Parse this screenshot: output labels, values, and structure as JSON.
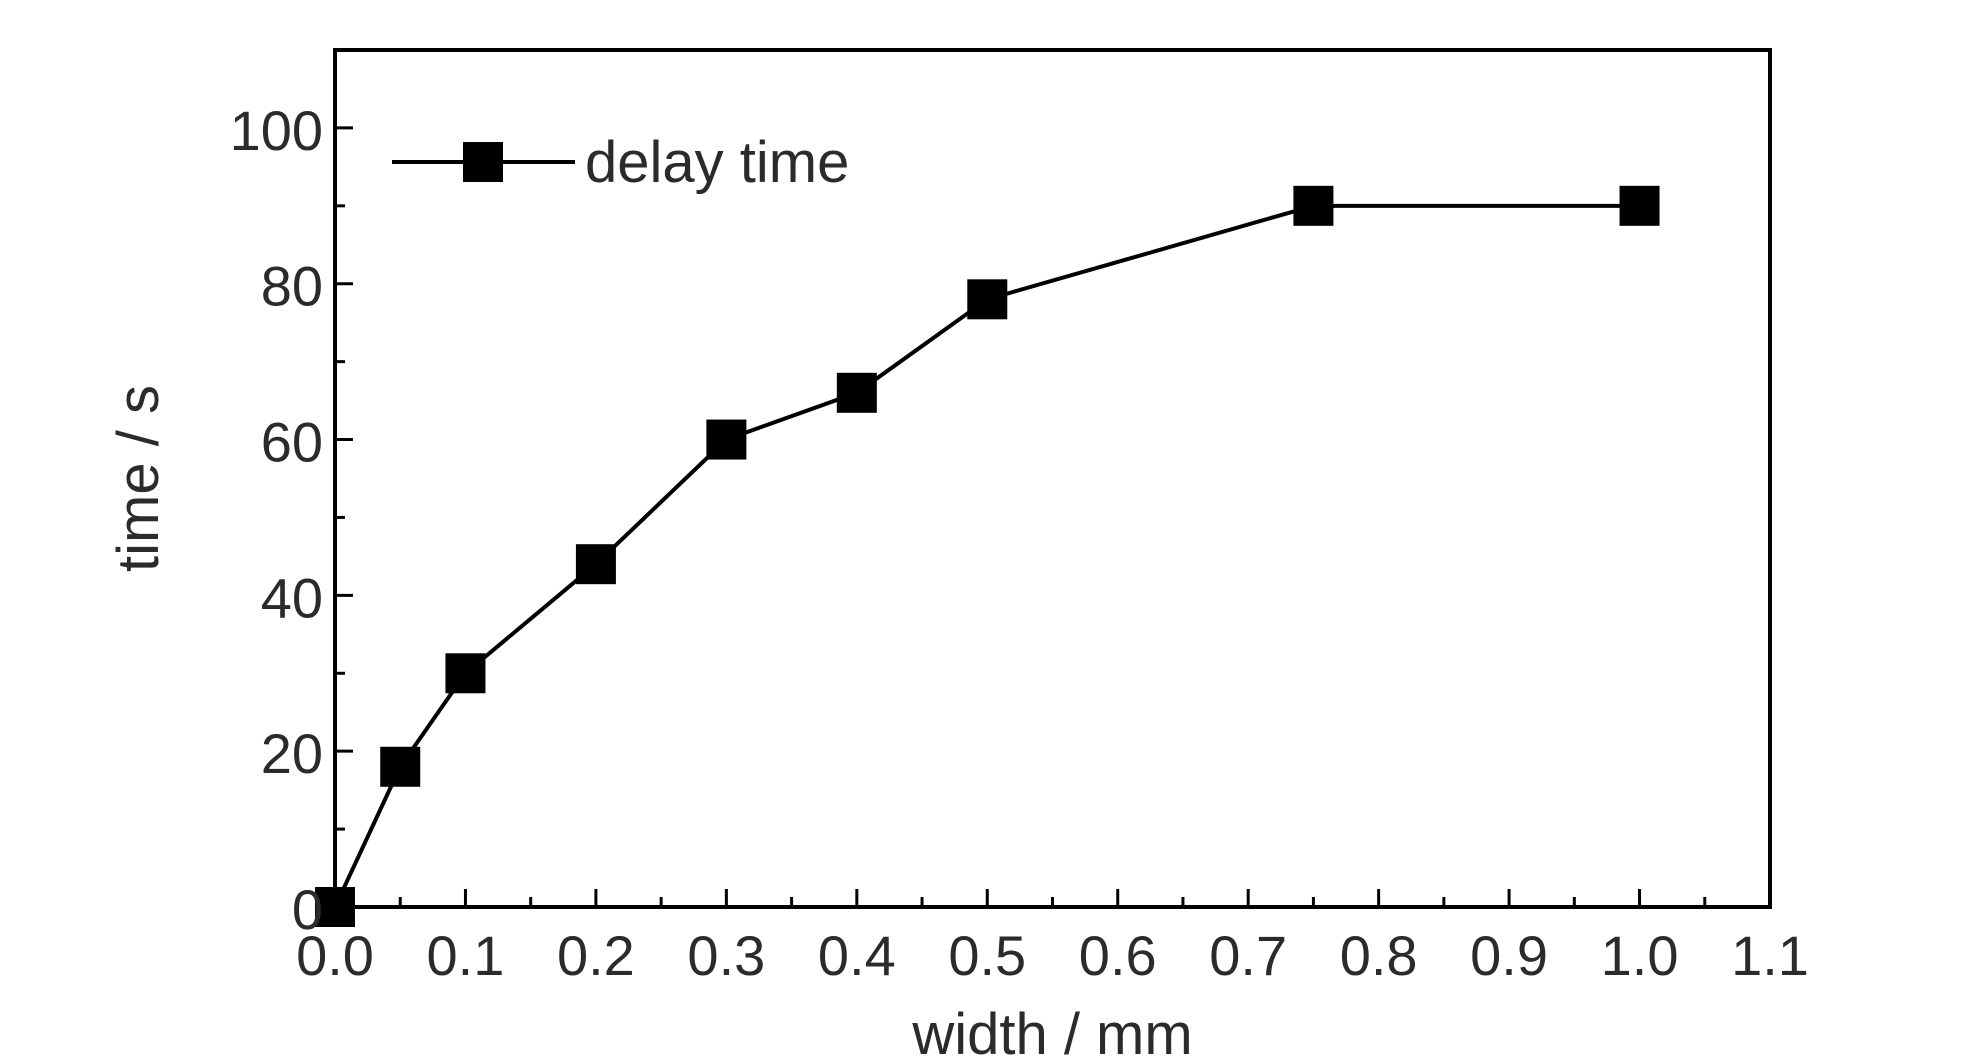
{
  "chart_data": {
    "type": "line",
    "title": "",
    "xlabel": "width / mm",
    "ylabel": "time / s",
    "xlim": [
      0.0,
      1.1
    ],
    "ylim": [
      0,
      110
    ],
    "x_ticks": [
      "0.0",
      "0.1",
      "0.2",
      "0.3",
      "0.4",
      "0.5",
      "0.6",
      "0.7",
      "0.8",
      "0.9",
      "1.0",
      "1.1"
    ],
    "y_ticks": [
      "0",
      "20",
      "40",
      "60",
      "80",
      "100"
    ],
    "grid": false,
    "legend": {
      "placement": "top-left",
      "entries": [
        "delay time"
      ]
    },
    "series": [
      {
        "name": "delay time",
        "marker": "square",
        "color": "#000000",
        "x": [
          0.0,
          0.05,
          0.1,
          0.2,
          0.3,
          0.4,
          0.5,
          0.75,
          1.0
        ],
        "y": [
          0,
          18,
          30,
          44,
          60,
          66,
          78,
          90,
          90
        ]
      }
    ]
  }
}
